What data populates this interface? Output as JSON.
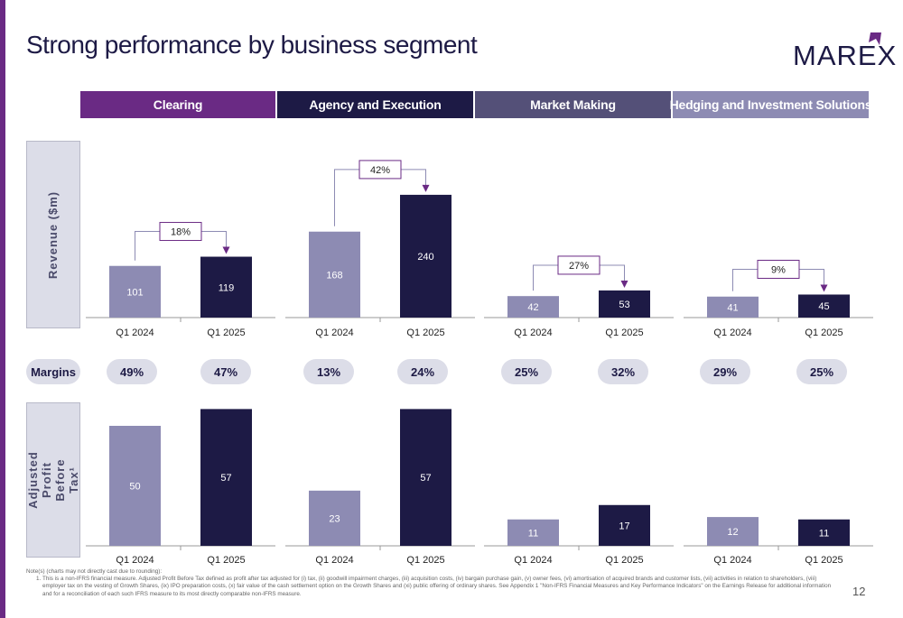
{
  "header": {
    "title": "Strong performance by business segment",
    "logo_text": "MAREX"
  },
  "segments": [
    {
      "name": "Clearing",
      "color": "#6a2a84"
    },
    {
      "name": "Agency and Execution",
      "color": "#1d1a45"
    },
    {
      "name": "Market Making",
      "color": "#545078"
    },
    {
      "name": "Hedging and Investment Solutions",
      "color": "#8d8bb3"
    }
  ],
  "row_labels": {
    "revenue": "Revenue ($m)",
    "apbt": "Adjusted Profit Before Tax¹",
    "margins": "Margins"
  },
  "colors": {
    "prior_period": "#8d8bb3",
    "current_period": "#1d1a45",
    "growth_arrow": "#6a2a84"
  },
  "margins": [
    {
      "segment": "Clearing",
      "values": [
        "49%",
        "47%"
      ]
    },
    {
      "segment": "Agency and Execution",
      "values": [
        "13%",
        "24%"
      ]
    },
    {
      "segment": "Market Making",
      "values": [
        "25%",
        "32%"
      ]
    },
    {
      "segment": "Hedging and Investment Solutions",
      "values": [
        "29%",
        "25%"
      ]
    }
  ],
  "chart_data": [
    {
      "type": "bar",
      "segment": "Clearing",
      "row": "revenue",
      "categories": [
        "Q1 2024",
        "Q1 2025"
      ],
      "values": [
        101,
        119
      ],
      "growth": "18%"
    },
    {
      "type": "bar",
      "segment": "Agency and Execution",
      "row": "revenue",
      "categories": [
        "Q1 2024",
        "Q1 2025"
      ],
      "values": [
        168,
        240
      ],
      "growth": "42%"
    },
    {
      "type": "bar",
      "segment": "Market Making",
      "row": "revenue",
      "categories": [
        "Q1 2024",
        "Q1 2025"
      ],
      "values": [
        42,
        53
      ],
      "growth": "27%"
    },
    {
      "type": "bar",
      "segment": "Hedging and Investment Solutions",
      "row": "revenue",
      "categories": [
        "Q1 2024",
        "Q1 2025"
      ],
      "values": [
        41,
        45
      ],
      "growth": "9%"
    },
    {
      "type": "bar",
      "segment": "Clearing",
      "row": "apbt",
      "categories": [
        "Q1 2024",
        "Q1 2025"
      ],
      "values": [
        50,
        57
      ]
    },
    {
      "type": "bar",
      "segment": "Agency and Execution",
      "row": "apbt",
      "categories": [
        "Q1 2024",
        "Q1 2025"
      ],
      "values": [
        23,
        57
      ]
    },
    {
      "type": "bar",
      "segment": "Market Making",
      "row": "apbt",
      "categories": [
        "Q1 2024",
        "Q1 2025"
      ],
      "values": [
        11,
        17
      ]
    },
    {
      "type": "bar",
      "segment": "Hedging and Investment Solutions",
      "row": "apbt",
      "categories": [
        "Q1 2024",
        "Q1 2025"
      ],
      "values": [
        12,
        11
      ]
    }
  ],
  "footnote": {
    "heading": "Note(s) (charts may not directly cast due to rounding):",
    "items": [
      "This is a non-IFRS financial measure. Adjusted Profit Before Tax defined as profit after tax adjusted for (i) tax, (ii) goodwill impairment charges, (iii) acquisition costs, (iv) bargain purchase gain, (v) owner fees, (vi) amortisation of acquired brands and customer lists, (vii) activities in relation to shareholders, (viii) employer tax on the vesting of Growth Shares, (ix) IPO preparation costs, (x) fair value of the cash settlement option on the Growth Shares and (xi) public offering of ordinary shares. See Appendix 1 \"Non-IFRS Financial Measures and Key Performance Indicators\" on the Earnings Release for additional information and for a reconciliation of each such IFRS measure to its most directly comparable non-IFRS measure."
    ]
  },
  "page_number": "12"
}
